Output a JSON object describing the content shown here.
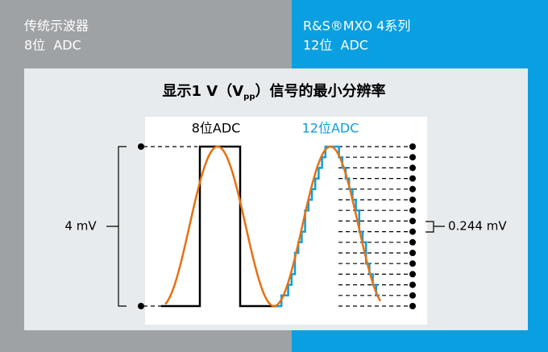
{
  "header": {
    "left": {
      "title": "传统示波器",
      "subtitle": "8位  ADC"
    },
    "right": {
      "title": "R&S®MXO 4系列",
      "subtitle": "12位  ADC"
    }
  },
  "diagram": {
    "title": {
      "before": "显示1 V（V",
      "subscript": "pp",
      "after": "）信号的最小分辨率"
    },
    "left_label": "8位ADC",
    "right_label": "12位ADC",
    "left_scale": "4 mV",
    "right_scale": "0.244 mV"
  }
}
